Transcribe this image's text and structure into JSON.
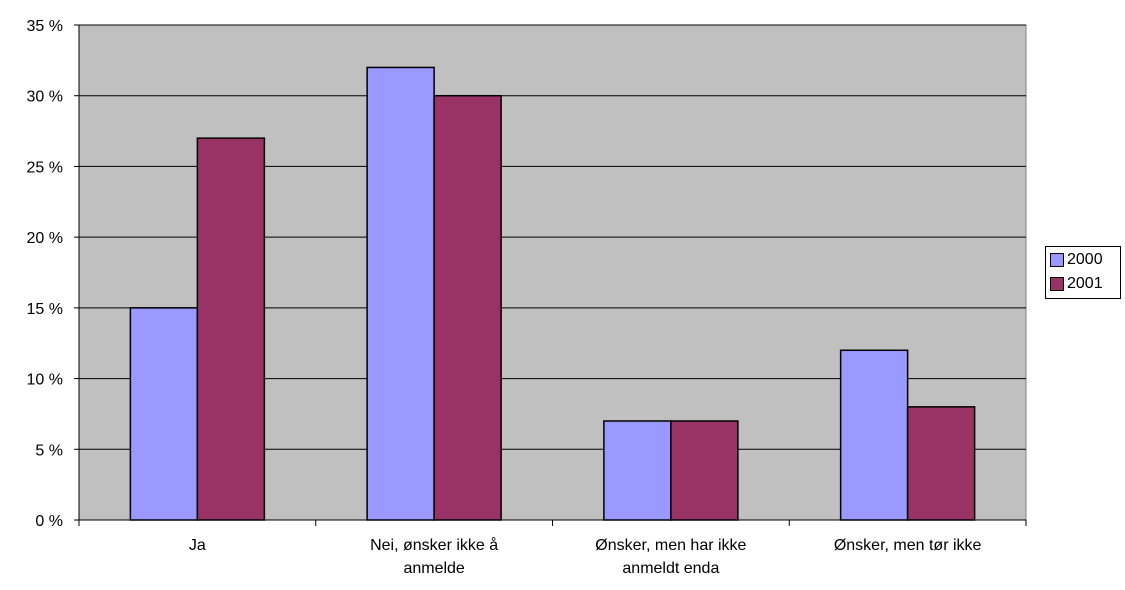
{
  "chart_data": {
    "type": "bar",
    "categories": [
      "Ja",
      "Nei, ønsker ikke å anmelde",
      "Ønsker, men har ikke anmeldt enda",
      "Ønsker, men tør ikke"
    ],
    "category_lines": [
      [
        "Ja"
      ],
      [
        "Nei, ønsker ikke å",
        "anmelde"
      ],
      [
        "Ønsker, men har ikke",
        "anmeldt enda"
      ],
      [
        "Ønsker, men tør ikke"
      ]
    ],
    "series": [
      {
        "name": "2000",
        "values": [
          15,
          32,
          7,
          12
        ],
        "color": "#9999ff"
      },
      {
        "name": "2001",
        "values": [
          27,
          30,
          7,
          8
        ],
        "color": "#993366"
      }
    ],
    "ylim": [
      0,
      35
    ],
    "yticks": [
      0,
      5,
      10,
      15,
      20,
      25,
      30,
      35
    ],
    "ytick_labels": [
      "0 %",
      "5 %",
      "10 %",
      "15 %",
      "20 %",
      "25 %",
      "30 %",
      "35 %"
    ],
    "plot_background": "#c0c0c0",
    "grid": true,
    "legend_position": "right",
    "title": "",
    "xlabel": "",
    "ylabel": ""
  }
}
